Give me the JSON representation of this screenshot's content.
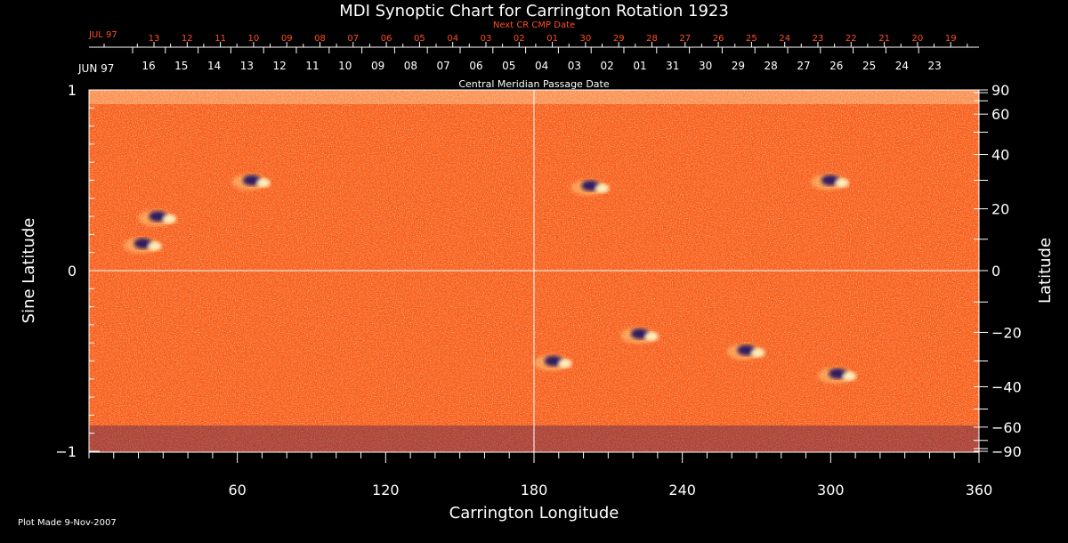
{
  "chart_data": {
    "type": "heatmap",
    "title": "MDI Synoptic Chart for Carrington Rotation 1923",
    "xlabel": "Carrington Longitude",
    "ylabel_left": "Sine Latitude",
    "ylabel_right": "Latitude",
    "xlim": [
      0,
      360
    ],
    "ylim": [
      -1,
      1
    ],
    "x_ticks": [
      60,
      120,
      180,
      240,
      300,
      360
    ],
    "y_ticks_left": [
      {
        "value": 1,
        "label": "1"
      },
      {
        "value": 0,
        "label": "0"
      },
      {
        "value": -1,
        "label": "−1"
      }
    ],
    "y_ticks_right_deg": [
      90,
      60,
      40,
      20,
      0,
      -20,
      -40,
      -60,
      -90
    ],
    "y_ticks_right_labels": [
      "90",
      "60",
      "40",
      "20",
      "0",
      "−20",
      "−40",
      "−60",
      "−90"
    ],
    "top_axis_next": {
      "label": "Next CR CMP Date",
      "month": "JUL 97",
      "days": [
        "13",
        "12",
        "11",
        "10",
        "09",
        "08",
        "07",
        "06",
        "05",
        "04",
        "03",
        "02",
        "01",
        "30",
        "29",
        "28",
        "27",
        "26",
        "25",
        "24",
        "23",
        "22",
        "21",
        "20",
        "19"
      ],
      "color": "#ff4422"
    },
    "top_axis_cmp": {
      "label": "Central Meridian Passage Date",
      "month": "JUN 97",
      "days": [
        "16",
        "15",
        "14",
        "13",
        "12",
        "11",
        "10",
        "09",
        "08",
        "07",
        "06",
        "05",
        "04",
        "03",
        "02",
        "01",
        "31",
        "30",
        "29",
        "28",
        "27",
        "26",
        "25",
        "24",
        "23"
      ]
    },
    "active_regions": [
      {
        "lon": 68,
        "sinlat": 0.5
      },
      {
        "lon": 30,
        "sinlat": 0.3
      },
      {
        "lon": 24,
        "sinlat": 0.15
      },
      {
        "lon": 205,
        "sinlat": 0.47
      },
      {
        "lon": 302,
        "sinlat": 0.5
      },
      {
        "lon": 268,
        "sinlat": -0.44
      },
      {
        "lon": 190,
        "sinlat": -0.5
      },
      {
        "lon": 305,
        "sinlat": -0.57
      },
      {
        "lon": 225,
        "sinlat": -0.35
      }
    ],
    "colors": {
      "background": "#000000",
      "field": "#ff5a14",
      "negative": "#1a1060",
      "positive": "#fff7c8",
      "axis": "#ffffff",
      "top_red": "#ff4422"
    },
    "grid": "central meridian and equator lines"
  },
  "footer": "Plot Made  9-Nov-2007"
}
